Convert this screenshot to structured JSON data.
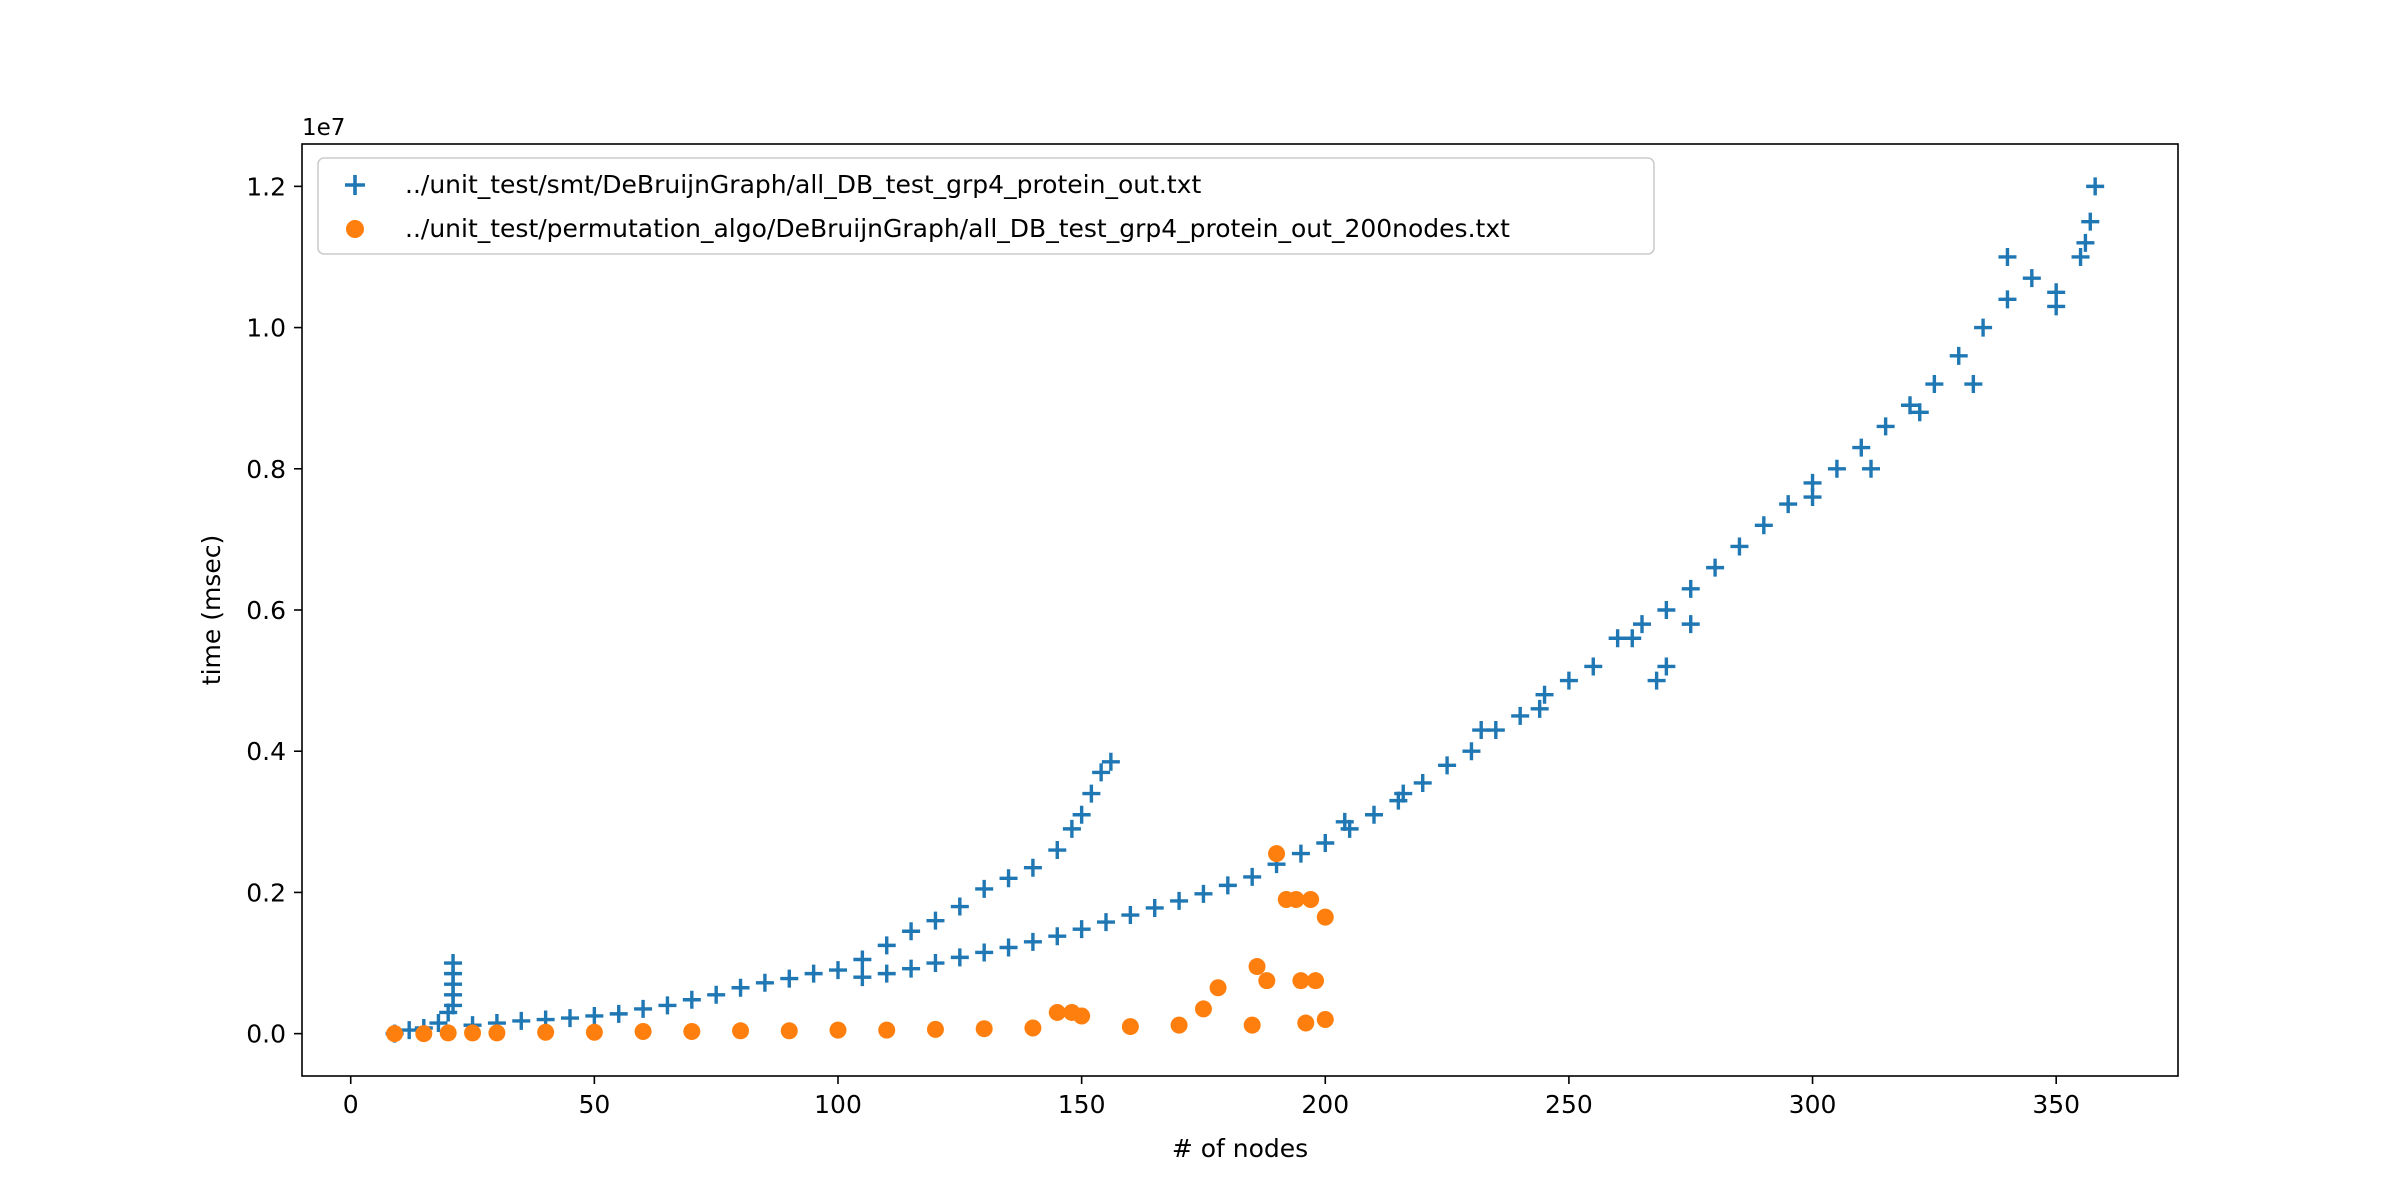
{
  "chart_data": {
    "type": "scatter",
    "title": "",
    "xlabel": "# of nodes",
    "ylabel": "time (msec)",
    "y_offset_label": "1e7",
    "y_scale_factor": 10000000,
    "xlim": [
      -10,
      375
    ],
    "ylim": [
      -0.06,
      1.26
    ],
    "x_ticks": [
      0,
      50,
      100,
      150,
      200,
      250,
      300,
      350
    ],
    "x_tick_labels": [
      "0",
      "50",
      "100",
      "150",
      "200",
      "250",
      "300",
      "350"
    ],
    "y_ticks": [
      0.0,
      0.2,
      0.4,
      0.6,
      0.8,
      1.0,
      1.2
    ],
    "y_tick_labels": [
      "0.0",
      "0.2",
      "0.4",
      "0.6",
      "0.8",
      "1.0",
      "1.2"
    ],
    "grid": false,
    "legend_position": "top-left",
    "series": [
      {
        "name": "../unit_test/smt/DeBruijnGraph/all_DB_test_grp4_protein_out.txt",
        "marker": "plus",
        "color": "#1f77b4",
        "points": [
          [
            9,
            0.0
          ],
          [
            12,
            0.005
          ],
          [
            15,
            0.008
          ],
          [
            18,
            0.015
          ],
          [
            20,
            0.03
          ],
          [
            21,
            0.04
          ],
          [
            21,
            0.055
          ],
          [
            21,
            0.07
          ],
          [
            21,
            0.085
          ],
          [
            21,
            0.1
          ],
          [
            25,
            0.012
          ],
          [
            30,
            0.015
          ],
          [
            35,
            0.018
          ],
          [
            40,
            0.02
          ],
          [
            45,
            0.022
          ],
          [
            50,
            0.025
          ],
          [
            55,
            0.028
          ],
          [
            60,
            0.035
          ],
          [
            65,
            0.04
          ],
          [
            70,
            0.048
          ],
          [
            75,
            0.055
          ],
          [
            80,
            0.065
          ],
          [
            85,
            0.072
          ],
          [
            90,
            0.078
          ],
          [
            95,
            0.085
          ],
          [
            100,
            0.09
          ],
          [
            105,
            0.105
          ],
          [
            110,
            0.125
          ],
          [
            115,
            0.145
          ],
          [
            120,
            0.16
          ],
          [
            125,
            0.18
          ],
          [
            130,
            0.205
          ],
          [
            135,
            0.22
          ],
          [
            140,
            0.235
          ],
          [
            145,
            0.26
          ],
          [
            148,
            0.29
          ],
          [
            150,
            0.31
          ],
          [
            152,
            0.34
          ],
          [
            154,
            0.37
          ],
          [
            156,
            0.385
          ],
          [
            105,
            0.08
          ],
          [
            110,
            0.085
          ],
          [
            115,
            0.092
          ],
          [
            120,
            0.1
          ],
          [
            125,
            0.108
          ],
          [
            130,
            0.115
          ],
          [
            135,
            0.122
          ],
          [
            140,
            0.13
          ],
          [
            145,
            0.138
          ],
          [
            150,
            0.148
          ],
          [
            155,
            0.158
          ],
          [
            160,
            0.168
          ],
          [
            165,
            0.178
          ],
          [
            170,
            0.188
          ],
          [
            175,
            0.198
          ],
          [
            180,
            0.21
          ],
          [
            185,
            0.222
          ],
          [
            190,
            0.24
          ],
          [
            195,
            0.255
          ],
          [
            200,
            0.27
          ],
          [
            205,
            0.29
          ],
          [
            210,
            0.31
          ],
          [
            215,
            0.33
          ],
          [
            220,
            0.355
          ],
          [
            225,
            0.38
          ],
          [
            230,
            0.4
          ],
          [
            235,
            0.43
          ],
          [
            240,
            0.45
          ],
          [
            245,
            0.48
          ],
          [
            250,
            0.5
          ],
          [
            255,
            0.52
          ],
          [
            260,
            0.56
          ],
          [
            265,
            0.58
          ],
          [
            270,
            0.6
          ],
          [
            275,
            0.63
          ],
          [
            280,
            0.66
          ],
          [
            285,
            0.69
          ],
          [
            290,
            0.72
          ],
          [
            295,
            0.75
          ],
          [
            300,
            0.78
          ],
          [
            305,
            0.8
          ],
          [
            310,
            0.83
          ],
          [
            315,
            0.86
          ],
          [
            320,
            0.89
          ],
          [
            325,
            0.92
          ],
          [
            330,
            0.96
          ],
          [
            335,
            1.0
          ],
          [
            340,
            1.04
          ],
          [
            345,
            1.07
          ],
          [
            350,
            1.05
          ],
          [
            355,
            1.1
          ],
          [
            357,
            1.15
          ],
          [
            358,
            1.2
          ],
          [
            268,
            0.5
          ],
          [
            270,
            0.52
          ],
          [
            263,
            0.56
          ],
          [
            275,
            0.58
          ],
          [
            232,
            0.43
          ],
          [
            300,
            0.76
          ],
          [
            312,
            0.8
          ],
          [
            322,
            0.88
          ],
          [
            333,
            0.92
          ],
          [
            340,
            1.1
          ],
          [
            350,
            1.03
          ],
          [
            356,
            1.12
          ],
          [
            204,
            0.3
          ],
          [
            216,
            0.34
          ],
          [
            244,
            0.46
          ]
        ]
      },
      {
        "name": "../unit_test/permutation_algo/DeBruijnGraph/all_DB_test_grp4_protein_out_200nodes.txt",
        "marker": "circle",
        "color": "#ff7f0e",
        "points": [
          [
            9,
            0.0
          ],
          [
            15,
            0.0
          ],
          [
            20,
            0.001
          ],
          [
            25,
            0.001
          ],
          [
            30,
            0.001
          ],
          [
            40,
            0.002
          ],
          [
            50,
            0.002
          ],
          [
            60,
            0.003
          ],
          [
            70,
            0.003
          ],
          [
            80,
            0.004
          ],
          [
            90,
            0.004
          ],
          [
            100,
            0.005
          ],
          [
            110,
            0.005
          ],
          [
            120,
            0.006
          ],
          [
            130,
            0.007
          ],
          [
            140,
            0.008
          ],
          [
            145,
            0.03
          ],
          [
            148,
            0.03
          ],
          [
            150,
            0.025
          ],
          [
            160,
            0.01
          ],
          [
            170,
            0.012
          ],
          [
            175,
            0.035
          ],
          [
            178,
            0.065
          ],
          [
            186,
            0.095
          ],
          [
            188,
            0.075
          ],
          [
            190,
            0.255
          ],
          [
            192,
            0.19
          ],
          [
            194,
            0.19
          ],
          [
            195,
            0.075
          ],
          [
            197,
            0.19
          ],
          [
            198,
            0.075
          ],
          [
            200,
            0.165
          ],
          [
            200,
            0.02
          ],
          [
            196,
            0.015
          ],
          [
            185,
            0.012
          ]
        ]
      }
    ]
  }
}
